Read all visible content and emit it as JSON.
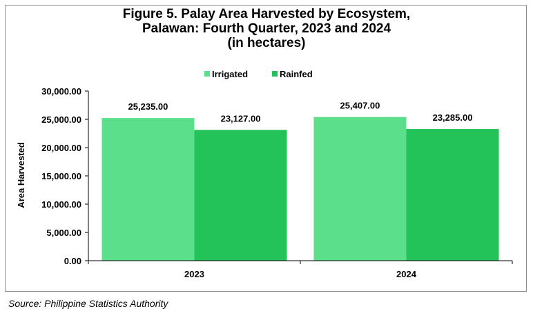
{
  "chart_data": {
    "type": "bar",
    "title_lines": [
      "Figure 5. Palay Area Harvested by Ecosystem,",
      "Palawan: Fourth Quarter, 2023 and 2024",
      "(in hectares)"
    ],
    "categories": [
      "2023",
      "2024"
    ],
    "series": [
      {
        "name": "Irrigated",
        "values": [
          25235.0,
          25407.0
        ],
        "value_labels": [
          "25,235.00",
          "25,407.00"
        ],
        "color": "#5cdf8a"
      },
      {
        "name": "Rainfed",
        "values": [
          23127.0,
          23285.0
        ],
        "value_labels": [
          "23,127.00",
          "23,285.00"
        ],
        "color": "#23c35a"
      }
    ],
    "xlabel": "",
    "ylabel": "Area Harvested",
    "ylim": [
      0,
      30000
    ],
    "yticks": [
      "0.00",
      "5,000.00",
      "10,000.00",
      "15,000.00",
      "20,000.00",
      "25,000.00",
      "30,000.00"
    ],
    "legend_position": "top-center",
    "grid": false
  },
  "source": "Source: Philippine Statistics Authority"
}
